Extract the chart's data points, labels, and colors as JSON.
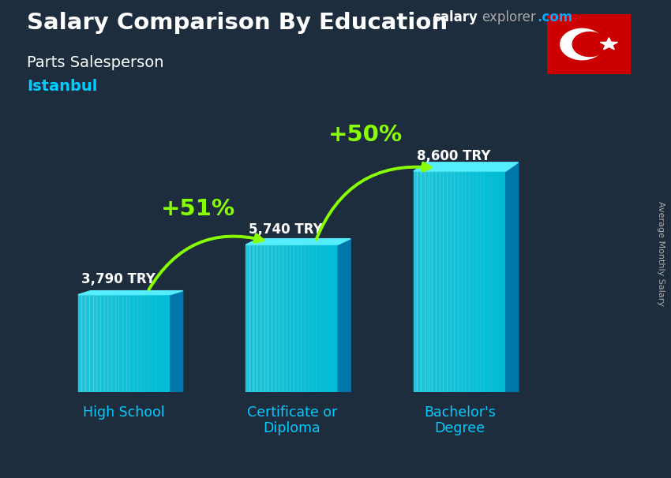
{
  "title_main": "Salary Comparison By Education",
  "title_sub": "Parts Salesperson",
  "title_city": "Istanbul",
  "ylabel": "Average Monthly Salary",
  "categories": [
    "High School",
    "Certificate or\nDiploma",
    "Bachelor's\nDegree"
  ],
  "values": [
    3790,
    5740,
    8600
  ],
  "value_labels": [
    "3,790 TRY",
    "5,740 TRY",
    "8,600 TRY"
  ],
  "pct_labels": [
    "+51%",
    "+50%"
  ],
  "bar_color_face": "#00bcd4",
  "bar_color_top": "#55eeff",
  "bar_color_side": "#0077aa",
  "bg_color": "#1e2d3d",
  "title_color": "#ffffff",
  "city_color": "#00ccff",
  "pct_color": "#88ff00",
  "label_color": "#ffffff",
  "xtick_color": "#00ccff",
  "bar_positions": [
    1.0,
    3.0,
    5.0
  ],
  "bar_width": 1.1,
  "ylim": [
    0,
    10800
  ],
  "xlim": [
    0,
    6.8
  ]
}
